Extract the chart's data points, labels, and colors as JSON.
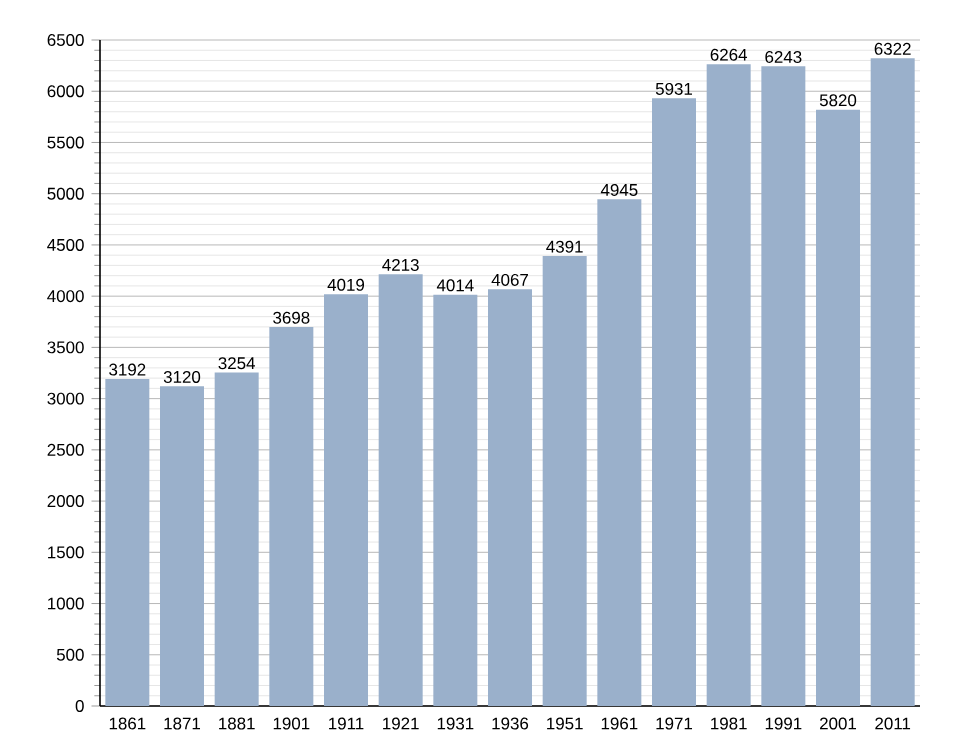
{
  "chart_data": {
    "type": "bar",
    "categories": [
      "1861",
      "1871",
      "1881",
      "1901",
      "1911",
      "1921",
      "1931",
      "1936",
      "1951",
      "1961",
      "1971",
      "1981",
      "1991",
      "2001",
      "2011"
    ],
    "values": [
      3192,
      3120,
      3254,
      3698,
      4019,
      4213,
      4014,
      4067,
      4391,
      4945,
      5931,
      6264,
      6243,
      5820,
      6322
    ],
    "color": "#9ab0cb",
    "ylim": [
      0,
      6500
    ],
    "yticks": [
      0,
      500,
      1000,
      1500,
      2000,
      2500,
      3000,
      3500,
      4000,
      4500,
      5000,
      5500,
      6000,
      6500
    ],
    "grid": "y",
    "data_labels": true
  }
}
